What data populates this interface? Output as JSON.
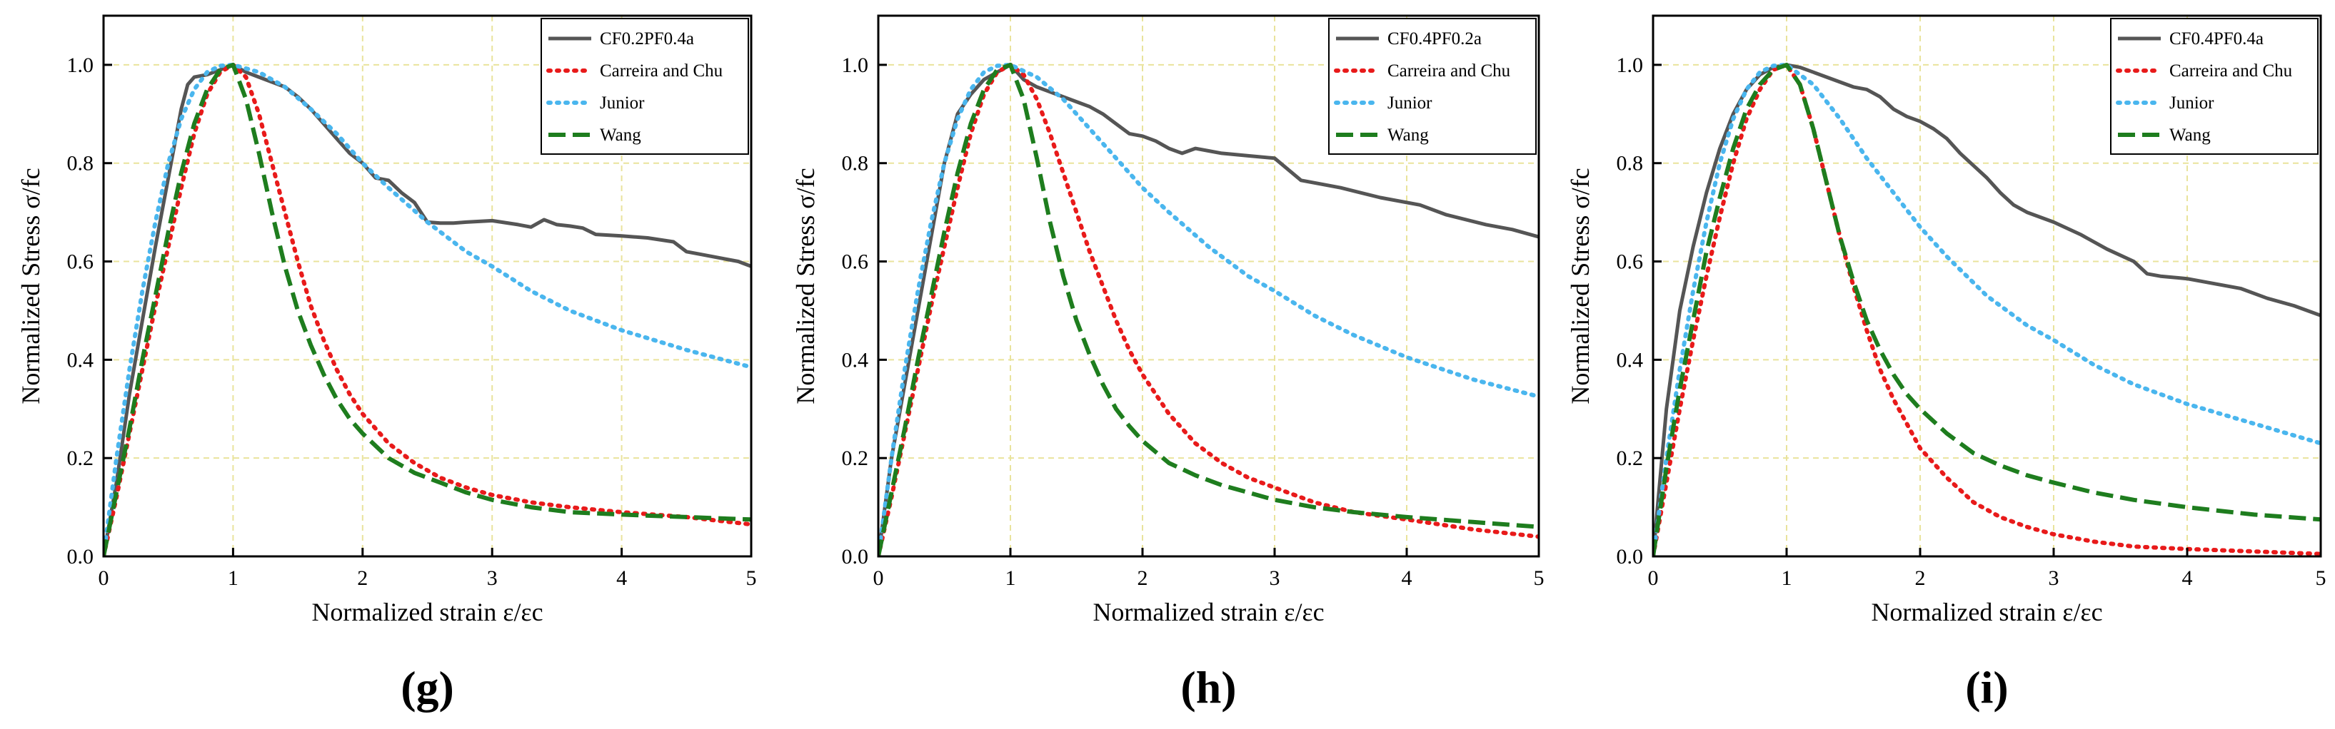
{
  "chart_data": [
    {
      "type": "line",
      "panel_label": "(g)",
      "xlabel": "Normalized strain  ε/εc",
      "ylabel": "Normalized Stress  σ/fc",
      "xlim": [
        0,
        5
      ],
      "ylim": [
        0,
        1.1
      ],
      "xticks": [
        0,
        1,
        2,
        3,
        4,
        5
      ],
      "yticks": [
        0.0,
        0.2,
        0.4,
        0.6,
        0.8,
        1.0
      ],
      "grid": true,
      "legend_position": "top-right",
      "series": [
        {
          "name": "CF0.2PF0.4a",
          "style": "solid",
          "color": "#555555",
          "x": [
            0,
            0.1,
            0.2,
            0.3,
            0.4,
            0.5,
            0.6,
            0.65,
            0.7,
            0.8,
            0.9,
            1.0,
            1.1,
            1.2,
            1.3,
            1.4,
            1.5,
            1.6,
            1.7,
            1.8,
            1.9,
            2.0,
            2.1,
            2.2,
            2.3,
            2.4,
            2.5,
            2.6,
            2.7,
            2.8,
            3.0,
            3.2,
            3.3,
            3.4,
            3.5,
            3.6,
            3.7,
            3.8,
            4.0,
            4.2,
            4.4,
            4.5,
            4.6,
            4.8,
            4.9,
            5.0
          ],
          "y": [
            0,
            0.15,
            0.33,
            0.48,
            0.63,
            0.77,
            0.91,
            0.96,
            0.975,
            0.98,
            0.99,
            1.0,
            0.985,
            0.975,
            0.965,
            0.955,
            0.935,
            0.91,
            0.88,
            0.85,
            0.82,
            0.8,
            0.77,
            0.765,
            0.74,
            0.72,
            0.68,
            0.678,
            0.678,
            0.68,
            0.683,
            0.675,
            0.67,
            0.685,
            0.675,
            0.672,
            0.668,
            0.655,
            0.652,
            0.648,
            0.64,
            0.62,
            0.615,
            0.605,
            0.6,
            0.59
          ]
        },
        {
          "name": "Carreira and Chu",
          "style": "dotted",
          "color": "#e81a1a",
          "x": [
            0,
            0.1,
            0.2,
            0.3,
            0.4,
            0.5,
            0.6,
            0.7,
            0.8,
            0.9,
            1.0,
            1.1,
            1.2,
            1.3,
            1.4,
            1.5,
            1.6,
            1.7,
            1.8,
            1.9,
            2.0,
            2.2,
            2.4,
            2.6,
            2.8,
            3.0,
            3.3,
            3.6,
            4.0,
            4.5,
            5.0
          ],
          "y": [
            0,
            0.12,
            0.25,
            0.38,
            0.51,
            0.63,
            0.75,
            0.86,
            0.94,
            0.985,
            1.0,
            0.975,
            0.9,
            0.8,
            0.7,
            0.6,
            0.51,
            0.44,
            0.38,
            0.33,
            0.29,
            0.23,
            0.19,
            0.16,
            0.14,
            0.125,
            0.11,
            0.1,
            0.09,
            0.08,
            0.065
          ]
        },
        {
          "name": "Junior",
          "style": "dotted",
          "color": "#4ab6ee",
          "x": [
            0,
            0.1,
            0.2,
            0.3,
            0.4,
            0.5,
            0.6,
            0.7,
            0.8,
            0.9,
            1.0,
            1.2,
            1.4,
            1.6,
            1.8,
            2.0,
            2.2,
            2.5,
            2.8,
            3.0,
            3.3,
            3.6,
            4.0,
            4.5,
            5.0
          ],
          "y": [
            0,
            0.2,
            0.38,
            0.54,
            0.68,
            0.8,
            0.89,
            0.95,
            0.985,
            0.998,
            1.0,
            0.985,
            0.955,
            0.91,
            0.86,
            0.8,
            0.75,
            0.68,
            0.62,
            0.59,
            0.54,
            0.5,
            0.46,
            0.42,
            0.385
          ]
        },
        {
          "name": "Wang",
          "style": "dashed",
          "color": "#1e7d1e",
          "x": [
            0,
            0.1,
            0.2,
            0.3,
            0.4,
            0.5,
            0.6,
            0.7,
            0.8,
            0.9,
            1.0,
            1.1,
            1.2,
            1.3,
            1.4,
            1.5,
            1.6,
            1.7,
            1.8,
            1.9,
            2.0,
            2.2,
            2.4,
            2.6,
            2.8,
            3.0,
            3.3,
            3.6,
            4.0,
            4.5,
            5.0
          ],
          "y": [
            0,
            0.13,
            0.26,
            0.4,
            0.53,
            0.66,
            0.78,
            0.88,
            0.95,
            0.99,
            1.0,
            0.93,
            0.82,
            0.7,
            0.59,
            0.5,
            0.43,
            0.37,
            0.32,
            0.28,
            0.25,
            0.2,
            0.17,
            0.15,
            0.13,
            0.115,
            0.1,
            0.09,
            0.085,
            0.08,
            0.075
          ]
        }
      ]
    },
    {
      "type": "line",
      "panel_label": "(h)",
      "xlabel": "Normalized strain  ε/εc",
      "ylabel": "Normalized Stress  σ/fc",
      "xlim": [
        0,
        5
      ],
      "ylim": [
        0,
        1.1
      ],
      "xticks": [
        0,
        1,
        2,
        3,
        4,
        5
      ],
      "yticks": [
        0.0,
        0.2,
        0.4,
        0.6,
        0.8,
        1.0
      ],
      "grid": true,
      "legend_position": "top-right",
      "series": [
        {
          "name": "CF0.4PF0.2a",
          "style": "solid",
          "color": "#555555",
          "x": [
            0,
            0.1,
            0.2,
            0.3,
            0.4,
            0.5,
            0.6,
            0.7,
            0.8,
            0.9,
            1.0,
            1.1,
            1.2,
            1.3,
            1.4,
            1.5,
            1.6,
            1.7,
            1.8,
            1.9,
            2.0,
            2.1,
            2.2,
            2.3,
            2.4,
            2.5,
            2.6,
            2.8,
            3.0,
            3.2,
            3.5,
            3.8,
            4.1,
            4.3,
            4.6,
            4.8,
            5.0
          ],
          "y": [
            0,
            0.2,
            0.35,
            0.5,
            0.65,
            0.8,
            0.9,
            0.94,
            0.97,
            0.985,
            1.0,
            0.97,
            0.955,
            0.945,
            0.935,
            0.925,
            0.915,
            0.9,
            0.88,
            0.86,
            0.855,
            0.845,
            0.83,
            0.82,
            0.83,
            0.825,
            0.82,
            0.815,
            0.81,
            0.765,
            0.75,
            0.73,
            0.715,
            0.695,
            0.675,
            0.665,
            0.65
          ]
        },
        {
          "name": "Carreira and Chu",
          "style": "dotted",
          "color": "#e81a1a",
          "x": [
            0,
            0.1,
            0.2,
            0.3,
            0.4,
            0.5,
            0.6,
            0.7,
            0.8,
            0.9,
            1.0,
            1.1,
            1.2,
            1.3,
            1.4,
            1.5,
            1.6,
            1.7,
            1.8,
            1.9,
            2.0,
            2.2,
            2.4,
            2.6,
            2.8,
            3.0,
            3.3,
            3.6,
            4.0,
            4.5,
            5.0
          ],
          "y": [
            0,
            0.12,
            0.25,
            0.38,
            0.51,
            0.63,
            0.75,
            0.86,
            0.94,
            0.985,
            1.0,
            0.98,
            0.93,
            0.86,
            0.78,
            0.7,
            0.62,
            0.55,
            0.48,
            0.42,
            0.37,
            0.29,
            0.23,
            0.19,
            0.16,
            0.14,
            0.11,
            0.09,
            0.075,
            0.055,
            0.04
          ]
        },
        {
          "name": "Junior",
          "style": "dotted",
          "color": "#4ab6ee",
          "x": [
            0,
            0.1,
            0.2,
            0.3,
            0.4,
            0.5,
            0.6,
            0.7,
            0.8,
            0.9,
            1.0,
            1.2,
            1.4,
            1.6,
            1.8,
            2.0,
            2.2,
            2.5,
            2.8,
            3.0,
            3.3,
            3.6,
            4.0,
            4.5,
            5.0
          ],
          "y": [
            0,
            0.2,
            0.38,
            0.54,
            0.68,
            0.8,
            0.89,
            0.95,
            0.985,
            0.998,
            1.0,
            0.975,
            0.93,
            0.87,
            0.81,
            0.75,
            0.7,
            0.63,
            0.57,
            0.54,
            0.49,
            0.45,
            0.405,
            0.36,
            0.325
          ]
        },
        {
          "name": "Wang",
          "style": "dashed",
          "color": "#1e7d1e",
          "x": [
            0,
            0.1,
            0.2,
            0.3,
            0.4,
            0.5,
            0.6,
            0.7,
            0.8,
            0.9,
            1.0,
            1.1,
            1.2,
            1.3,
            1.4,
            1.5,
            1.6,
            1.7,
            1.8,
            1.9,
            2.0,
            2.2,
            2.4,
            2.6,
            2.8,
            3.0,
            3.3,
            3.6,
            4.0,
            4.5,
            5.0
          ],
          "y": [
            0,
            0.13,
            0.26,
            0.4,
            0.53,
            0.66,
            0.78,
            0.88,
            0.95,
            0.99,
            1.0,
            0.93,
            0.81,
            0.68,
            0.57,
            0.48,
            0.41,
            0.35,
            0.3,
            0.265,
            0.235,
            0.19,
            0.165,
            0.145,
            0.13,
            0.115,
            0.1,
            0.09,
            0.08,
            0.07,
            0.06
          ]
        }
      ]
    },
    {
      "type": "line",
      "panel_label": "(i)",
      "xlabel": "Normalized strain  ε/εc",
      "ylabel": "Normalized Stress  σ/fc",
      "xlim": [
        0,
        5
      ],
      "ylim": [
        0,
        1.1
      ],
      "xticks": [
        0,
        1,
        2,
        3,
        4,
        5
      ],
      "yticks": [
        0.0,
        0.2,
        0.4,
        0.6,
        0.8,
        1.0
      ],
      "grid": true,
      "legend_position": "top-right",
      "series": [
        {
          "name": "CF0.4PF0.4a",
          "style": "solid",
          "color": "#555555",
          "x": [
            0,
            0.1,
            0.2,
            0.3,
            0.4,
            0.5,
            0.6,
            0.7,
            0.8,
            0.9,
            1.0,
            1.1,
            1.2,
            1.3,
            1.4,
            1.5,
            1.6,
            1.7,
            1.8,
            1.9,
            2.0,
            2.1,
            2.2,
            2.3,
            2.4,
            2.5,
            2.6,
            2.7,
            2.8,
            3.0,
            3.2,
            3.4,
            3.6,
            3.7,
            3.8,
            4.0,
            4.2,
            4.4,
            4.6,
            4.8,
            5.0
          ],
          "y": [
            0,
            0.3,
            0.5,
            0.63,
            0.74,
            0.83,
            0.9,
            0.95,
            0.98,
            0.995,
            1.0,
            0.995,
            0.985,
            0.975,
            0.965,
            0.955,
            0.95,
            0.935,
            0.91,
            0.895,
            0.885,
            0.87,
            0.85,
            0.82,
            0.795,
            0.77,
            0.74,
            0.715,
            0.7,
            0.68,
            0.655,
            0.625,
            0.6,
            0.575,
            0.57,
            0.565,
            0.555,
            0.545,
            0.525,
            0.51,
            0.49
          ]
        },
        {
          "name": "Carreira and Chu",
          "style": "dotted",
          "color": "#e81a1a",
          "x": [
            0,
            0.1,
            0.2,
            0.3,
            0.4,
            0.5,
            0.6,
            0.7,
            0.8,
            0.9,
            1.0,
            1.1,
            1.2,
            1.3,
            1.4,
            1.5,
            1.6,
            1.7,
            1.8,
            1.9,
            2.0,
            2.2,
            2.4,
            2.6,
            2.8,
            3.0,
            3.3,
            3.6,
            4.0,
            4.5,
            5.0
          ],
          "y": [
            0,
            0.15,
            0.3,
            0.44,
            0.57,
            0.69,
            0.8,
            0.89,
            0.95,
            0.99,
            1.0,
            0.96,
            0.87,
            0.76,
            0.65,
            0.55,
            0.46,
            0.38,
            0.32,
            0.27,
            0.22,
            0.16,
            0.11,
            0.08,
            0.06,
            0.045,
            0.03,
            0.02,
            0.015,
            0.01,
            0.005
          ]
        },
        {
          "name": "Junior",
          "style": "dotted",
          "color": "#4ab6ee",
          "x": [
            0,
            0.1,
            0.2,
            0.3,
            0.4,
            0.5,
            0.6,
            0.7,
            0.8,
            0.9,
            1.0,
            1.2,
            1.4,
            1.6,
            1.8,
            2.0,
            2.2,
            2.5,
            2.8,
            3.0,
            3.3,
            3.6,
            4.0,
            4.5,
            5.0
          ],
          "y": [
            0,
            0.2,
            0.38,
            0.54,
            0.68,
            0.8,
            0.89,
            0.95,
            0.985,
            0.998,
            1.0,
            0.96,
            0.89,
            0.81,
            0.74,
            0.67,
            0.61,
            0.53,
            0.47,
            0.44,
            0.39,
            0.35,
            0.31,
            0.27,
            0.23
          ]
        },
        {
          "name": "Wang",
          "style": "dashed",
          "color": "#1e7d1e",
          "x": [
            0,
            0.1,
            0.2,
            0.3,
            0.4,
            0.5,
            0.6,
            0.7,
            0.8,
            0.9,
            1.0,
            1.1,
            1.2,
            1.3,
            1.4,
            1.5,
            1.6,
            1.7,
            1.8,
            1.9,
            2.0,
            2.2,
            2.4,
            2.6,
            2.8,
            3.0,
            3.3,
            3.6,
            4.0,
            4.5,
            5.0
          ],
          "y": [
            0,
            0.18,
            0.34,
            0.48,
            0.62,
            0.73,
            0.83,
            0.91,
            0.96,
            0.99,
            1.0,
            0.96,
            0.87,
            0.76,
            0.65,
            0.56,
            0.48,
            0.42,
            0.37,
            0.33,
            0.3,
            0.25,
            0.21,
            0.185,
            0.165,
            0.15,
            0.13,
            0.115,
            0.1,
            0.085,
            0.075
          ]
        }
      ]
    }
  ]
}
